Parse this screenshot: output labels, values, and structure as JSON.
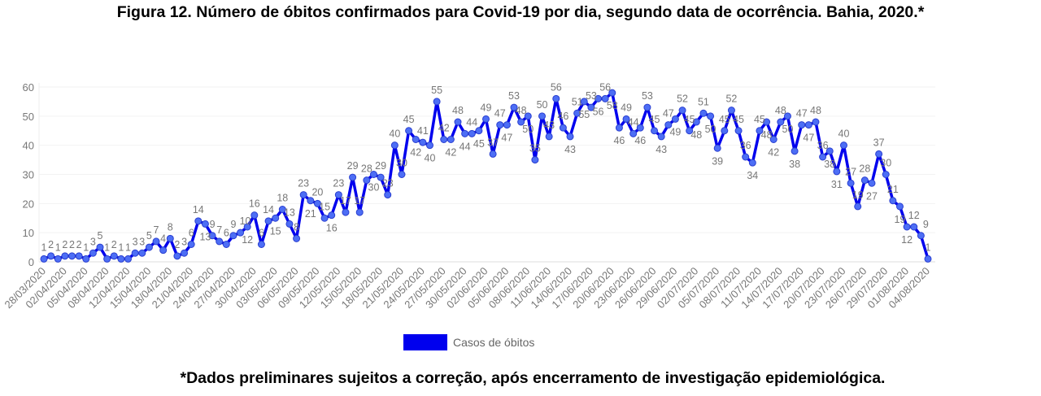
{
  "chart_data": {
    "type": "line",
    "title": "Figura 12. Número de óbitos confirmados para Covid-19 por dia, segundo data de ocorrência. Bahia, 2020.*",
    "footnote": "*Dados preliminares sujeitos a correção, após encerramento de investigação epidemiológica.",
    "xlabel": "",
    "ylabel": "",
    "ylim": [
      0,
      60
    ],
    "yticks": [
      0,
      10,
      20,
      30,
      40,
      50,
      60
    ],
    "grid": true,
    "legend_position": "bottom",
    "x_tick_labels": [
      "28/03/2020",
      "02/04/2020",
      "05/04/2020",
      "08/04/2020",
      "12/04/2020",
      "15/04/2020",
      "18/04/2020",
      "21/04/2020",
      "24/04/2020",
      "27/04/2020",
      "30/04/2020",
      "03/05/2020",
      "06/05/2020",
      "09/05/2020",
      "12/05/2020",
      "15/05/2020",
      "18/05/2020",
      "21/05/2020",
      "24/05/2020",
      "27/05/2020",
      "30/05/2020",
      "02/06/2020",
      "05/06/2020",
      "08/06/2020",
      "11/06/2020",
      "14/06/2020",
      "17/06/2020",
      "20/06/2020",
      "23/06/2020",
      "26/06/2020",
      "29/06/2020",
      "02/07/2020",
      "05/07/2020",
      "08/07/2020",
      "11/07/2020",
      "14/07/2020",
      "17/07/2020",
      "20/07/2020",
      "23/07/2020",
      "26/07/2020",
      "29/07/2020",
      "01/08/2020",
      "04/08/2020"
    ],
    "x_tick_every": 3,
    "series": [
      {
        "name": "Casos de óbitos",
        "color": "#0000ee",
        "marker_color": "#4d6ef5",
        "values": [
          1,
          2,
          1,
          2,
          2,
          2,
          1,
          3,
          5,
          1,
          2,
          1,
          1,
          3,
          3,
          5,
          7,
          4,
          8,
          2,
          3,
          6,
          14,
          13,
          9,
          7,
          6,
          9,
          10,
          12,
          16,
          6,
          14,
          15,
          18,
          13,
          8,
          23,
          21,
          20,
          15,
          16,
          23,
          17,
          29,
          17,
          28,
          30,
          29,
          23,
          40,
          30,
          45,
          42,
          41,
          40,
          55,
          42,
          42,
          48,
          44,
          44,
          45,
          49,
          37,
          47,
          47,
          53,
          48,
          50,
          35,
          50,
          43,
          56,
          46,
          43,
          51,
          55,
          53,
          56,
          56,
          58,
          46,
          49,
          44,
          46,
          53,
          45,
          43,
          47,
          49,
          52,
          45,
          48,
          51,
          50,
          39,
          45,
          52,
          45,
          36,
          34,
          45,
          48,
          42,
          48,
          50,
          38,
          47,
          47,
          48,
          36,
          38,
          31,
          40,
          27,
          19,
          28,
          27,
          37,
          30,
          21,
          19,
          12,
          12,
          9,
          1
        ]
      }
    ]
  }
}
